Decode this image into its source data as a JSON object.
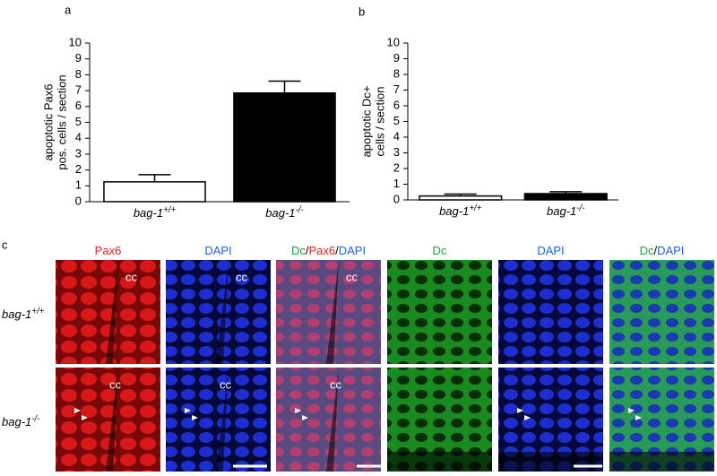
{
  "chart_data": [
    {
      "type": "bar",
      "panel": "a",
      "ylabel": [
        "apoptotic Pax6",
        "pos. cells / section"
      ],
      "categories": [
        "bag-1+/+",
        "bag-1-/-"
      ],
      "values": [
        1.25,
        6.85
      ],
      "errors": [
        0.45,
        0.75
      ],
      "colors": [
        "#ffffff",
        "#000000"
      ],
      "ylim": [
        0,
        10
      ],
      "yticks": [
        0,
        1,
        2,
        3,
        4,
        5,
        6,
        7,
        8,
        9,
        10
      ]
    },
    {
      "type": "bar",
      "panel": "b",
      "ylabel": [
        "apoptotic Dc+",
        "cells / section"
      ],
      "categories": [
        "bag-1+/+",
        "bag-1-/-"
      ],
      "values": [
        0.25,
        0.4
      ],
      "errors": [
        0.12,
        0.12
      ],
      "colors": [
        "#ffffff",
        "#000000"
      ],
      "ylim": [
        0,
        10
      ],
      "yticks": [
        0,
        1,
        2,
        3,
        4,
        5,
        6,
        7,
        8,
        9,
        10
      ]
    }
  ],
  "figure": {
    "panel": "c",
    "columns": [
      [
        {
          "text": "Pax6",
          "color": "#e02020"
        }
      ],
      [
        {
          "text": "DAPI",
          "color": "#2060e0"
        }
      ],
      [
        {
          "text": "Dc",
          "color": "#20a040"
        },
        {
          "text": "/",
          "color": "#000000"
        },
        {
          "text": "Pax6",
          "color": "#e02020"
        },
        {
          "text": "/",
          "color": "#000000"
        },
        {
          "text": "DAPI",
          "color": "#2060e0"
        }
      ],
      [
        {
          "text": "Dc",
          "color": "#20a040"
        }
      ],
      [
        {
          "text": "DAPI",
          "color": "#2060e0"
        }
      ],
      [
        {
          "text": "Dc",
          "color": "#20a040"
        },
        {
          "text": "/",
          "color": "#000000"
        },
        {
          "text": "DAPI",
          "color": "#2060e0"
        }
      ]
    ],
    "rows": [
      "bag-1+/+",
      "bag-1-/-"
    ],
    "cc": "cc"
  }
}
